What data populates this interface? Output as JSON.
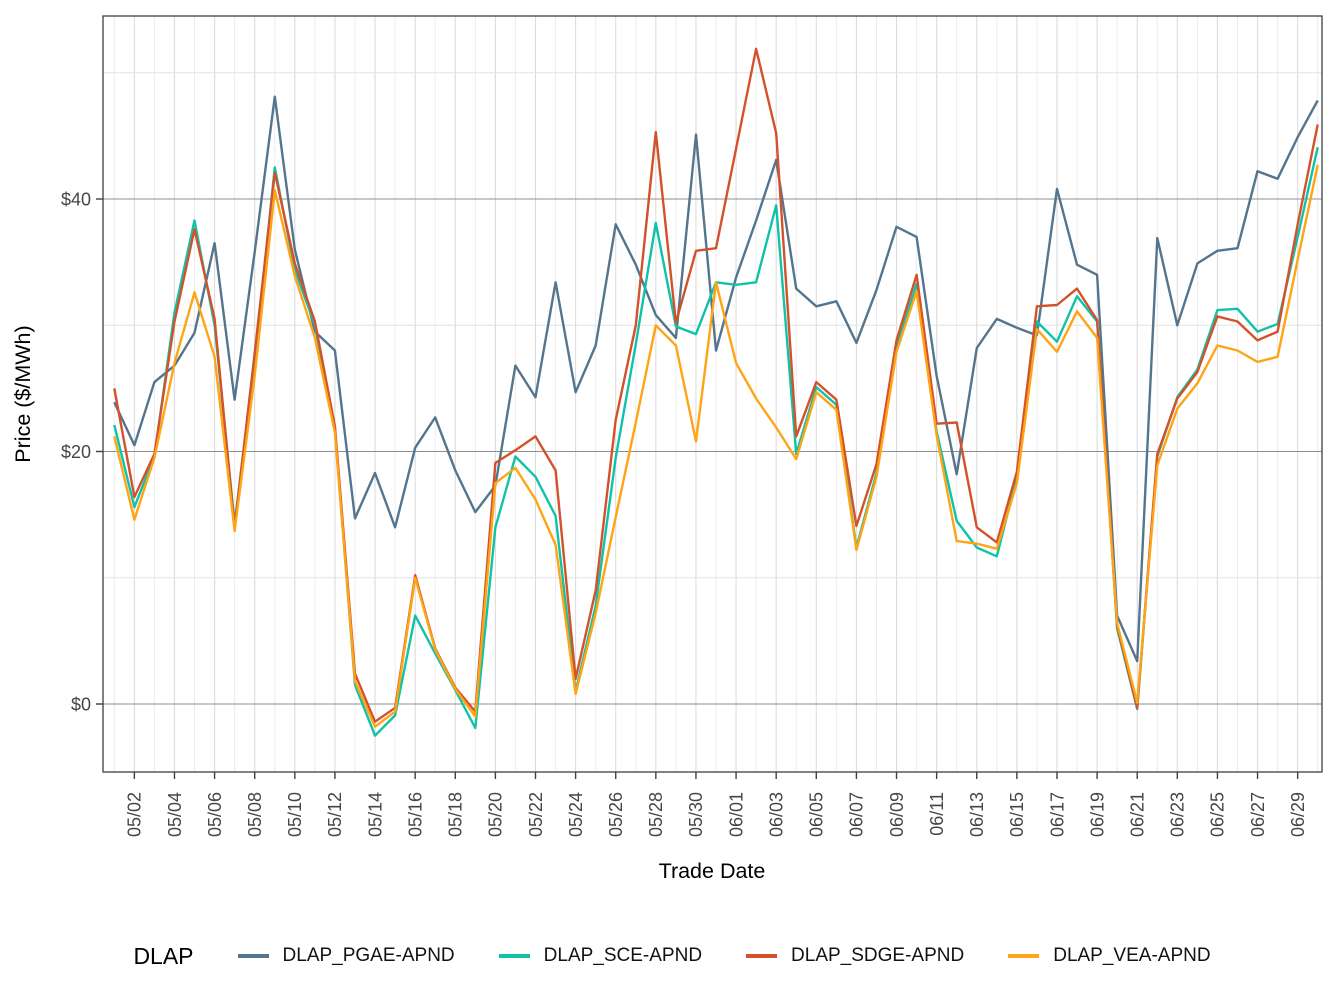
{
  "chart_data": {
    "type": "line",
    "title": "",
    "xlabel": "Trade Date",
    "ylabel": "Price ($/MWh)",
    "legend_title": "DLAP",
    "legend_position": "bottom",
    "grid": true,
    "x": [
      "05/01",
      "05/02",
      "05/03",
      "05/04",
      "05/05",
      "05/06",
      "05/07",
      "05/08",
      "05/09",
      "05/10",
      "05/11",
      "05/12",
      "05/13",
      "05/14",
      "05/15",
      "05/16",
      "05/17",
      "05/18",
      "05/19",
      "05/20",
      "05/21",
      "05/22",
      "05/23",
      "05/24",
      "05/25",
      "05/26",
      "05/27",
      "05/28",
      "05/29",
      "05/30",
      "05/31",
      "06/01",
      "06/02",
      "06/03",
      "06/04",
      "06/05",
      "06/06",
      "06/07",
      "06/08",
      "06/09",
      "06/10",
      "06/11",
      "06/12",
      "06/13",
      "06/14",
      "06/15",
      "06/16",
      "06/17",
      "06/18",
      "06/19",
      "06/20",
      "06/21",
      "06/22",
      "06/23",
      "06/24",
      "06/25",
      "06/26",
      "06/27",
      "06/28",
      "06/29",
      "06/30"
    ],
    "x_tick_labels": [
      "05/02",
      "05/04",
      "05/06",
      "05/08",
      "05/10",
      "05/12",
      "05/14",
      "05/16",
      "05/18",
      "05/20",
      "05/22",
      "05/24",
      "05/26",
      "05/28",
      "05/30",
      "06/01",
      "06/03",
      "06/05",
      "06/07",
      "06/09",
      "06/11",
      "06/13",
      "06/15",
      "06/17",
      "06/19",
      "06/21",
      "06/23",
      "06/25",
      "06/27",
      "06/29"
    ],
    "y_axis": {
      "tick_values": [
        0,
        20,
        40
      ],
      "tick_labels": [
        "$0",
        "$20",
        "$40"
      ],
      "minor_values": [
        10,
        30,
        50
      ],
      "range": [
        -5.4,
        54.5
      ]
    },
    "series": [
      {
        "name": "DLAP_PGAE-APND",
        "color": "#53758D",
        "values": [
          23.9,
          20.5,
          25.5,
          26.8,
          29.4,
          36.5,
          24.1,
          35.8,
          48.1,
          36.0,
          29.5,
          28.0,
          14.7,
          18.3,
          14.0,
          20.3,
          22.7,
          18.5,
          15.2,
          17.3,
          26.8,
          24.3,
          33.4,
          24.7,
          28.4,
          38.0,
          34.8,
          30.8,
          29.0,
          45.1,
          28.0,
          33.8,
          38.3,
          43.1,
          32.9,
          31.5,
          31.9,
          28.6,
          32.8,
          37.8,
          37.0,
          26.0,
          18.2,
          28.2,
          30.5,
          29.8,
          29.2,
          40.8,
          34.8,
          34.0,
          7.0,
          3.4,
          36.9,
          30.0,
          34.9,
          35.9,
          36.1,
          42.2,
          41.6,
          44.9,
          47.8
        ]
      },
      {
        "name": "DLAP_SCE-APND",
        "color": "#10C2A8",
        "values": [
          22.1,
          15.6,
          19.6,
          31.0,
          38.3,
          30.0,
          14.3,
          27.2,
          42.5,
          34.4,
          30.0,
          21.8,
          1.5,
          -2.5,
          -0.9,
          7.0,
          4.0,
          1.1,
          -1.9,
          14.0,
          19.6,
          18.0,
          14.9,
          1.0,
          7.8,
          19.5,
          28.5,
          38.1,
          29.9,
          29.3,
          33.4,
          33.2,
          33.4,
          39.5,
          19.8,
          25.1,
          23.7,
          12.4,
          18.3,
          28.3,
          33.3,
          21.6,
          14.5,
          12.4,
          11.7,
          18.0,
          30.3,
          28.7,
          32.3,
          30.3,
          6.0,
          -0.4,
          19.6,
          24.3,
          26.5,
          31.2,
          31.3,
          29.5,
          30.1,
          37.0,
          44.1
        ]
      },
      {
        "name": "DLAP_SDGE-APND",
        "color": "#D3512B",
        "values": [
          25.0,
          16.4,
          19.8,
          30.3,
          37.6,
          30.5,
          14.0,
          27.8,
          42.1,
          34.9,
          30.3,
          22.0,
          2.4,
          -1.4,
          -0.3,
          10.2,
          4.4,
          1.3,
          -0.6,
          19.1,
          20.1,
          21.2,
          18.5,
          2.0,
          9.0,
          22.5,
          30.0,
          45.3,
          30.2,
          35.9,
          36.1,
          44.0,
          51.9,
          45.2,
          21.2,
          25.5,
          24.1,
          14.1,
          19.0,
          28.8,
          34.0,
          22.2,
          22.3,
          14.0,
          12.8,
          18.4,
          31.5,
          31.6,
          32.9,
          30.4,
          6.2,
          -0.3,
          19.8,
          24.2,
          26.3,
          30.7,
          30.3,
          28.8,
          29.5,
          38.0,
          45.9
        ]
      },
      {
        "name": "DLAP_VEA-APND",
        "color": "#FFA415",
        "values": [
          21.2,
          14.6,
          19.5,
          27.0,
          32.6,
          27.5,
          13.7,
          26.0,
          40.7,
          33.9,
          29.0,
          21.5,
          1.8,
          -1.8,
          -0.6,
          10.0,
          4.3,
          1.2,
          -1.0,
          17.5,
          18.7,
          16.2,
          12.6,
          0.8,
          7.2,
          14.8,
          22.3,
          30.0,
          28.4,
          20.8,
          33.4,
          27.0,
          24.2,
          21.9,
          19.4,
          24.7,
          23.3,
          12.2,
          18.0,
          27.9,
          32.7,
          21.3,
          12.9,
          12.7,
          12.3,
          17.5,
          29.7,
          27.9,
          31.1,
          29.0,
          6.4,
          0.1,
          18.9,
          23.4,
          25.4,
          28.4,
          28.0,
          27.1,
          27.5,
          35.2,
          42.7
        ]
      }
    ],
    "panel": {
      "border_color": "#3f3f3f",
      "background": "#ffffff"
    }
  }
}
